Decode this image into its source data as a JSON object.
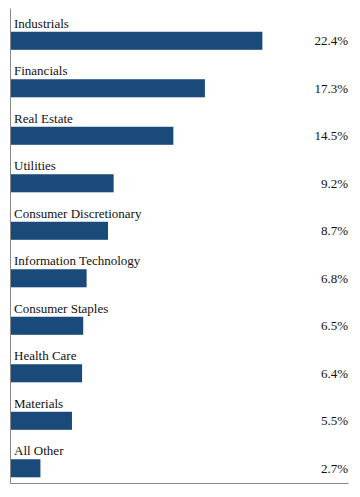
{
  "chart_data": {
    "type": "bar",
    "orientation": "horizontal",
    "categories": [
      "Industrials",
      "Financials",
      "Real Estate",
      "Utilities",
      "Consumer Discretionary",
      "Information Technology",
      "Consumer Staples",
      "Health Care",
      "Materials",
      "All Other"
    ],
    "values": [
      22.4,
      17.3,
      14.5,
      9.2,
      8.7,
      6.8,
      6.5,
      6.4,
      5.5,
      2.7
    ],
    "value_labels": [
      "22.4%",
      "17.3%",
      "14.5%",
      "9.2%",
      "8.7%",
      "6.8%",
      "6.5%",
      "6.4%",
      "5.5%",
      "2.7%"
    ],
    "color": "#1a4a7a",
    "xlim": [
      0,
      30
    ],
    "data_labels": true,
    "tick_labels": false,
    "grid": false
  }
}
